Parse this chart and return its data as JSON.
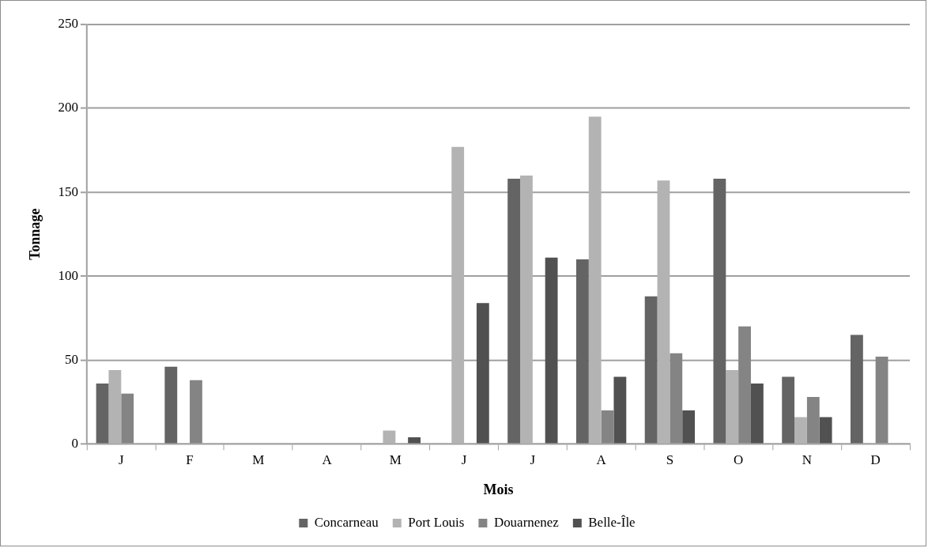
{
  "chart_data": {
    "type": "bar",
    "xlabel": "Mois",
    "ylabel": "Tonnage",
    "categories": [
      "J",
      "F",
      "M",
      "A",
      "M",
      "J",
      "J",
      "A",
      "S",
      "O",
      "N",
      "D"
    ],
    "series": [
      {
        "name": "Concarneau",
        "color": "#646464",
        "values": [
          36,
          46,
          0,
          0,
          0,
          0,
          158,
          110,
          88,
          158,
          40,
          65
        ]
      },
      {
        "name": "Port Louis",
        "color": "#b3b3b3",
        "values": [
          44,
          0,
          0,
          0,
          8,
          177,
          160,
          195,
          157,
          44,
          16,
          0
        ]
      },
      {
        "name": "Douarnenez",
        "color": "#848484",
        "values": [
          30,
          38,
          0,
          0,
          0,
          0,
          0,
          20,
          54,
          70,
          28,
          52
        ]
      },
      {
        "name": "Belle-Île",
        "color": "#515151",
        "values": [
          0,
          0,
          0,
          0,
          4,
          84,
          111,
          40,
          20,
          36,
          16,
          0
        ]
      }
    ],
    "ylim": [
      0,
      250
    ],
    "yticks": [
      0,
      50,
      100,
      150,
      200,
      250
    ],
    "grid": "y",
    "legend": "bottom"
  }
}
